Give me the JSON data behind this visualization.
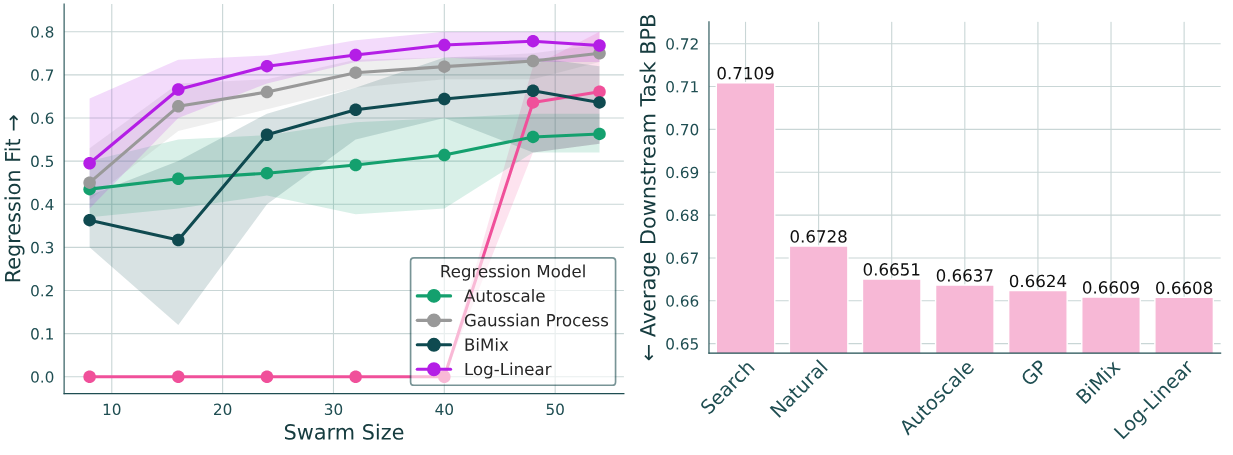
{
  "chart_data": [
    {
      "type": "line",
      "xlabel": "Swarm Size",
      "ylabel": "Regression Fit →",
      "legend_title": "Regression Model",
      "legend": "bottom right",
      "grid": true,
      "marker": "circle",
      "line_style": "solid",
      "x": [
        8,
        16,
        24,
        32,
        40,
        48,
        54
      ],
      "xlim": [
        5.7,
        56.2
      ],
      "xticks": [
        10,
        20,
        30,
        40,
        50
      ],
      "ylim": [
        -0.039,
        0.864
      ],
      "yticks": [
        {
          "value": 0,
          "label": "0.0"
        },
        0.1,
        0.2,
        0.3,
        0.4,
        0.5,
        0.6,
        0.7,
        0.8
      ],
      "series": [
        {
          "color": "#f0509a",
          "values": [
            0,
            0,
            0,
            0,
            0,
            0.636,
            0.661
          ],
          "lower": [
            0,
            0,
            0,
            0,
            0,
            0.52,
            0.54
          ],
          "upper": [
            0,
            0,
            0,
            0,
            0,
            0.72,
            0.8
          ]
        },
        {
          "name": "Autoscale",
          "color": "#14a06e",
          "values": [
            0.435,
            0.459,
            0.472,
            0.491,
            0.514,
            0.556,
            0.563
          ],
          "lower": [
            0.37,
            0.39,
            0.42,
            0.377,
            0.39,
            0.52,
            0.52
          ],
          "upper": [
            0.5,
            0.55,
            0.56,
            0.59,
            0.6,
            0.61,
            0.61
          ]
        },
        {
          "name": "Gaussian Process",
          "color": "#999999",
          "values": [
            0.45,
            0.627,
            0.66,
            0.705,
            0.719,
            0.732,
            0.75
          ],
          "lower": [
            0.41,
            0.57,
            0.62,
            0.67,
            0.69,
            0.69,
            0.73
          ],
          "upper": [
            0.53,
            0.68,
            0.69,
            0.735,
            0.74,
            0.75,
            0.77
          ]
        },
        {
          "name": "BiMix",
          "color": "#0f4a50",
          "values": [
            0.363,
            0.317,
            0.561,
            0.619,
            0.644,
            0.663,
            0.636
          ],
          "lower": [
            0.3,
            0.12,
            0.4,
            0.55,
            0.6,
            0.52,
            0.54
          ],
          "upper": [
            0.42,
            0.5,
            0.61,
            0.67,
            0.74,
            0.74,
            0.72
          ]
        },
        {
          "name": "Log-Linear",
          "color": "#b41ee6",
          "values": [
            0.495,
            0.666,
            0.72,
            0.746,
            0.769,
            0.778,
            0.768
          ],
          "lower": [
            0.39,
            0.6,
            0.68,
            0.73,
            0.74,
            0.73,
            0.73
          ],
          "upper": [
            0.645,
            0.735,
            0.745,
            0.78,
            0.8,
            0.8,
            0.8
          ]
        }
      ]
    },
    {
      "type": "bar",
      "ylabel": "← Average Downstream Task BPB",
      "grid": true,
      "data_labels": true,
      "categories": [
        "Search",
        "Natural",
        null,
        "Autoscale",
        "GP",
        "BiMix",
        "Log-Linear"
      ],
      "values": [
        0.7109,
        0.6728,
        0.6651,
        0.6637,
        0.6624,
        0.6609,
        0.6608
      ],
      "color": "#f7b8d6",
      "ylim": [
        0.6478,
        0.7251
      ],
      "yticks": [
        0.65,
        0.66,
        0.67,
        0.68,
        0.69,
        {
          "value": 0.7,
          "label": "0.70"
        },
        0.71,
        0.72
      ]
    }
  ]
}
